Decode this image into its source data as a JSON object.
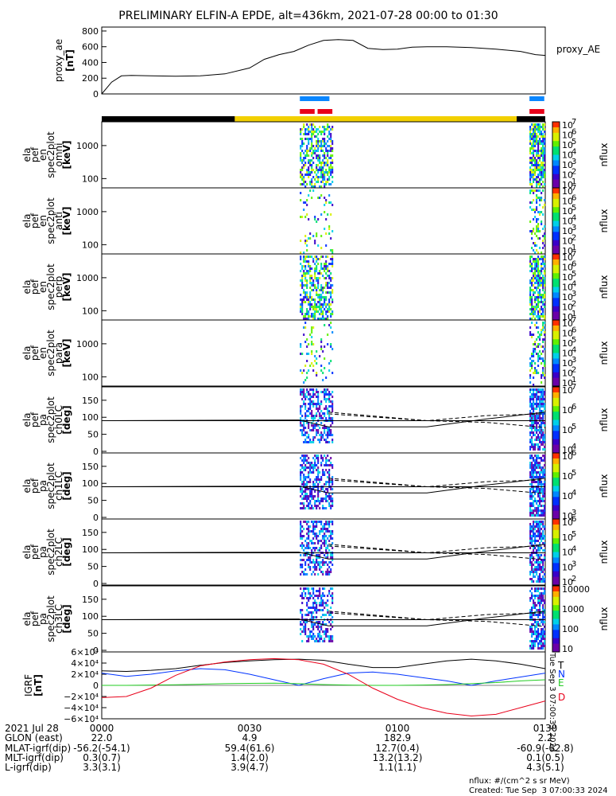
{
  "title": "PRELIMINARY ELFIN-A EPDE, alt=436km, 2021-07-28 00:00 to 01:30",
  "colors": {
    "blue_bar": "#0a86ff",
    "red_bar": "#e8001a",
    "gold_bar": "#f2d000",
    "black_bar": "#000000"
  },
  "ae_panel": {
    "ylabel": [
      "proxy_ae",
      "[nT]"
    ],
    "legend": "proxy_AE",
    "yticks": [
      "800",
      "600",
      "400",
      "200",
      "0"
    ],
    "chart_data": {
      "type": "line",
      "x_minutes": [
        0,
        2,
        4,
        6,
        10,
        15,
        20,
        25,
        30,
        33,
        36,
        39,
        42,
        45,
        48,
        51,
        54,
        57,
        60,
        63,
        66,
        70,
        75,
        80,
        85,
        88,
        90
      ],
      "values": [
        0,
        150,
        230,
        235,
        230,
        225,
        230,
        255,
        330,
        440,
        500,
        540,
        620,
        680,
        690,
        680,
        580,
        565,
        570,
        595,
        600,
        600,
        590,
        570,
        540,
        500,
        490
      ],
      "ylim": [
        0,
        850
      ],
      "xlim": [
        0,
        90
      ]
    }
  },
  "bars": {
    "blue_segments": [
      [
        40.2,
        46.2
      ],
      [
        86.8,
        89.8
      ]
    ],
    "red_segments": [
      [
        40.2,
        43.2
      ],
      [
        43.8,
        46.8
      ],
      [
        86.8,
        89.8
      ]
    ],
    "black_segments": [
      [
        0,
        27
      ],
      [
        84.2,
        90
      ]
    ],
    "gold_segments": [
      [
        27,
        84.2
      ]
    ]
  },
  "energy_panels": [
    {
      "ylabel": [
        "ela",
        "pef",
        "en",
        "spec2plot",
        "omni",
        "[keV]"
      ],
      "yticks": [
        "1000",
        "100"
      ],
      "cb_ticks": [
        "10",
        "10",
        "10",
        "10",
        "10",
        "10",
        "10"
      ],
      "cb_exps": [
        "7",
        "6",
        "5",
        "4",
        "3",
        "2",
        "1"
      ],
      "cb_label": "nflux"
    },
    {
      "ylabel": [
        "ela",
        "pef",
        "en",
        "spec2plot",
        "anti",
        "[keV]"
      ],
      "yticks": [
        "1000",
        "100"
      ],
      "cb_ticks": [
        "10",
        "10",
        "10",
        "10",
        "10",
        "10",
        "10"
      ],
      "cb_exps": [
        "7",
        "6",
        "5",
        "4",
        "3",
        "2",
        "1"
      ],
      "cb_label": "nflux"
    },
    {
      "ylabel": [
        "ela",
        "pef",
        "en",
        "spec2plot",
        "perp",
        "[keV]"
      ],
      "yticks": [
        "1000",
        "100"
      ],
      "cb_ticks": [
        "10",
        "10",
        "10",
        "10",
        "10",
        "10",
        "10"
      ],
      "cb_exps": [
        "7",
        "6",
        "5",
        "4",
        "3",
        "2",
        "1"
      ],
      "cb_label": "nflux"
    },
    {
      "ylabel": [
        "ela",
        "pef",
        "en",
        "spec2plot",
        "para",
        "[keV]"
      ],
      "yticks": [
        "1000",
        "100"
      ],
      "cb_ticks": [
        "10",
        "10",
        "10",
        "10",
        "10",
        "10",
        "10"
      ],
      "cb_exps": [
        "7",
        "6",
        "5",
        "4",
        "3",
        "2",
        "1"
      ],
      "cb_label": "nflux"
    }
  ],
  "pa_panels": [
    {
      "ylabel": [
        "ela",
        "pef",
        "pa",
        "spec2plot",
        "ch0LC",
        "[deg]"
      ],
      "yticks": [
        "150",
        "100",
        "50",
        "0"
      ],
      "cb_ticks": [
        "10",
        "10",
        "10",
        "10"
      ],
      "cb_exps": [
        "7",
        "6",
        "5",
        "4"
      ],
      "cb_label": "nflux"
    },
    {
      "ylabel": [
        "ela",
        "pef",
        "pa",
        "spec2plot",
        "ch1LC",
        "[deg]"
      ],
      "yticks": [
        "150",
        "100",
        "50",
        "0"
      ],
      "cb_ticks": [
        "10",
        "10",
        "10",
        "10"
      ],
      "cb_exps": [
        "6",
        "5",
        "4",
        "3"
      ],
      "cb_label": "nflux"
    },
    {
      "ylabel": [
        "ela",
        "pef",
        "pa",
        "spec2plot",
        "ch2LC",
        "[deg]"
      ],
      "yticks": [
        "150",
        "100",
        "50",
        "0"
      ],
      "cb_ticks": [
        "10",
        "10",
        "10",
        "10",
        "10"
      ],
      "cb_exps": [
        "6",
        "5",
        "4",
        "3",
        "2"
      ],
      "cb_label": "nflux"
    },
    {
      "ylabel": [
        "ela",
        "pef",
        "pa",
        "spec2plot",
        "ch3LC",
        "[deg]"
      ],
      "yticks": [
        "150",
        "100",
        "50",
        "0"
      ],
      "cb_ticks": [
        "10000",
        "1000",
        "100",
        "10"
      ],
      "cb_exps": [
        "",
        "",
        "",
        ""
      ],
      "cb_label": "nflux"
    }
  ],
  "lc_lines": {
    "x_minutes": [
      0,
      40,
      46,
      66,
      78,
      90
    ],
    "solid_upper": [
      90,
      90,
      90,
      90,
      90,
      90
    ],
    "solid_lower": [
      90,
      92,
      72,
      72,
      95,
      115
    ],
    "dashed_upper": [
      null,
      null,
      115,
      90,
      105,
      110
    ],
    "dashed_lower": [
      null,
      null,
      110,
      90,
      85,
      70
    ]
  },
  "igrf_panel": {
    "ylabel": [
      "IGRF",
      "[nT]"
    ],
    "yticks": [
      "6×10⁴",
      "4×10⁴",
      "2×10⁴",
      "0",
      "−2×10⁴",
      "−4×10⁴",
      "−6×10⁴"
    ],
    "legend": [
      {
        "name": "T",
        "color": "#000000"
      },
      {
        "name": "N",
        "color": "#0033ff"
      },
      {
        "name": "E",
        "color": "#22cc22"
      },
      {
        "name": "D",
        "color": "#e8001a"
      }
    ],
    "ylim": [
      -60000,
      60000
    ],
    "chart_data": {
      "type": "line",
      "x_minutes": [
        0,
        5,
        10,
        15,
        20,
        25,
        30,
        35,
        40,
        45,
        50,
        55,
        60,
        65,
        70,
        75,
        80,
        85,
        90
      ],
      "series": [
        {
          "name": "T",
          "values": [
            26000,
            25000,
            27000,
            30000,
            36000,
            41000,
            44000,
            46000,
            47000,
            45000,
            38000,
            32000,
            32000,
            38000,
            44000,
            47000,
            44000,
            38000,
            30000
          ]
        },
        {
          "name": "N",
          "values": [
            22000,
            16000,
            20000,
            26000,
            30000,
            28000,
            20000,
            10000,
            0,
            12000,
            22000,
            24000,
            20000,
            14000,
            8000,
            0,
            8000,
            15000,
            22000
          ]
        },
        {
          "name": "E",
          "values": [
            0,
            0,
            500,
            1000,
            2000,
            3000,
            3500,
            4000,
            3000,
            1500,
            500,
            0,
            0,
            500,
            1500,
            3000,
            5000,
            8000,
            10000
          ]
        },
        {
          "name": "D",
          "values": [
            -22000,
            -20000,
            -5000,
            18000,
            35000,
            42000,
            46000,
            48000,
            46000,
            38000,
            20000,
            -5000,
            -25000,
            -40000,
            -50000,
            -55000,
            -52000,
            -40000,
            -28000
          ]
        }
      ]
    }
  },
  "side_text": "Tue Sep  3 07:00:33 2024",
  "footer": {
    "row_labels": [
      "2021 Jul 28",
      "GLON (east)",
      "MLAT-igrf(dip)",
      "MLT-igrf(dip)",
      "L-igrf(dip)"
    ],
    "columns": [
      {
        "time": "0000",
        "glon": "22.0",
        "mlat": "-56.2(-54.1)",
        "mlt": "0.3(0.7)",
        "l": "3.3(3.1)"
      },
      {
        "time": "0030",
        "glon": "4.9",
        "mlat": "59.4(61.6)",
        "mlt": "1.4(2.0)",
        "l": "3.9(4.7)"
      },
      {
        "time": "0100",
        "glon": "182.9",
        "mlat": "12.7(0.4)",
        "mlt": "13.2(13.2)",
        "l": "1.1(1.1)"
      },
      {
        "time": "0130",
        "glon": "2.2",
        "mlat": "-60.9(-62.8)",
        "mlt": "0.1(0.5)",
        "l": "4.3(5.1)"
      }
    ],
    "units": "nflux: #/(cm^2 s sr MeV)",
    "created": "Created: Tue Sep  3 07:00:33 2024"
  }
}
